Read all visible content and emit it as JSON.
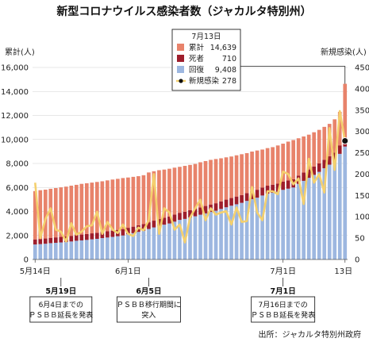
{
  "chart_data": {
    "type": "bar",
    "title": "新型コロナウイルス感染者数（ジャカルタ特別州）",
    "ylabel_left": "累計(人)",
    "ylabel_right": "新規感染(人)",
    "source": "出所：ジャカルタ特別州政府",
    "ylim_left": [
      0,
      16000
    ],
    "ylim_right": [
      0,
      450
    ],
    "yticks_left": [
      "0",
      "2,000",
      "4,000",
      "6,000",
      "8,000",
      "10,000",
      "12,000",
      "14,000",
      "16,000"
    ],
    "yticks_right": [
      "0",
      "50",
      "100",
      "150",
      "200",
      "250",
      "300",
      "350",
      "400",
      "450"
    ],
    "date_labels": [
      {
        "index": 0,
        "label": "5月14日"
      },
      {
        "index": 18,
        "label": "6月1日"
      },
      {
        "index": 48,
        "label": "7月1日"
      },
      {
        "index": 60,
        "label": "13日"
      }
    ],
    "x": [
      "5/14",
      "5/15",
      "5/16",
      "5/17",
      "5/18",
      "5/19",
      "5/20",
      "5/21",
      "5/22",
      "5/23",
      "5/24",
      "5/25",
      "5/26",
      "5/27",
      "5/28",
      "5/29",
      "5/30",
      "5/31",
      "6/1",
      "6/2",
      "6/3",
      "6/4",
      "6/5",
      "6/6",
      "6/7",
      "6/8",
      "6/9",
      "6/10",
      "6/11",
      "6/12",
      "6/13",
      "6/14",
      "6/15",
      "6/16",
      "6/17",
      "6/18",
      "6/19",
      "6/20",
      "6/21",
      "6/22",
      "6/23",
      "6/24",
      "6/25",
      "6/26",
      "6/27",
      "6/28",
      "6/29",
      "6/30",
      "7/1",
      "7/2",
      "7/3",
      "7/4",
      "7/5",
      "7/6",
      "7/7",
      "7/8",
      "7/9",
      "7/10",
      "7/11",
      "7/12",
      "7/13"
    ],
    "series": [
      {
        "name": "累計",
        "color": "#e8836b",
        "values": [
          5700,
          5773,
          5817,
          5890,
          5950,
          6010,
          6070,
          6150,
          6220,
          6301,
          6350,
          6405,
          6460,
          6515,
          6590,
          6660,
          6720,
          6785,
          6830,
          6885,
          6940,
          7020,
          7250,
          7350,
          7440,
          7490,
          7560,
          7650,
          7720,
          7800,
          7880,
          7960,
          8100,
          8200,
          8300,
          8370,
          8430,
          8510,
          8580,
          8680,
          8770,
          8860,
          8990,
          9080,
          9160,
          9280,
          9360,
          9500,
          9650,
          9820,
          9950,
          10100,
          10250,
          10400,
          10600,
          10800,
          11050,
          11300,
          11680,
          12300,
          14639
        ]
      },
      {
        "name": "死者",
        "color": "#9e1e2c",
        "values": [
          422,
          430,
          438,
          446,
          452,
          460,
          466,
          472,
          480,
          486,
          492,
          498,
          504,
          510,
          516,
          522,
          528,
          532,
          538,
          544,
          548,
          554,
          560,
          566,
          570,
          576,
          580,
          584,
          590,
          594,
          600,
          606,
          612,
          618,
          622,
          626,
          632,
          636,
          640,
          644,
          648,
          652,
          656,
          660,
          664,
          668,
          672,
          676,
          680,
          684,
          688,
          692,
          696,
          698,
          700,
          702,
          704,
          706,
          708,
          709,
          710
        ]
      },
      {
        "name": "回復",
        "color": "#9db7e0",
        "values": [
          1250,
          1280,
          1310,
          1360,
          1390,
          1420,
          1460,
          1500,
          1560,
          1590,
          1630,
          1680,
          1720,
          1780,
          1830,
          1880,
          1940,
          2000,
          2100,
          2190,
          2300,
          2390,
          2540,
          2670,
          2800,
          2900,
          3000,
          3150,
          3300,
          3380,
          3500,
          3600,
          3730,
          3840,
          3960,
          4060,
          4210,
          4350,
          4480,
          4600,
          4720,
          4880,
          5030,
          5150,
          5330,
          5480,
          5560,
          5640,
          5800,
          5900,
          6000,
          6300,
          6550,
          6800,
          7050,
          7300,
          7600,
          7900,
          8200,
          8800,
          9408
        ]
      },
      {
        "name": "新規感染",
        "color": "#f4d06e",
        "values": [
          180,
          50,
          95,
          120,
          70,
          65,
          42,
          85,
          58,
          65,
          78,
          80,
          112,
          60,
          88,
          70,
          62,
          82,
          60,
          55,
          75,
          68,
          92,
          200,
          60,
          120,
          110,
          70,
          82,
          40,
          98,
          120,
          140,
          92,
          120,
          105,
          110,
          113,
          82,
          122,
          88,
          90,
          170,
          110,
          92,
          160,
          160,
          153,
          206,
          200,
          176,
          190,
          130,
          236,
          180,
          200,
          157,
          308,
          210,
          348,
          278
        ]
      }
    ],
    "highlight": {
      "label": "7月13日",
      "index": 60,
      "rows": [
        {
          "name": "累計",
          "value": "14,639"
        },
        {
          "name": "死者",
          "value": "710"
        },
        {
          "name": "回復",
          "value": "9,408"
        },
        {
          "name": "新規感染",
          "value": "278"
        }
      ]
    },
    "annotations": [
      {
        "index": 5,
        "date": "5月19日",
        "lines": [
          "6月4日までの",
          "ＰＳＢＢ延長を発表"
        ]
      },
      {
        "index": 22,
        "date": "6月5日",
        "lines": [
          "ＰＳＢＢ移行期間に",
          "突入"
        ]
      },
      {
        "index": 48,
        "date": "7月1日",
        "lines": [
          "7月16日までの",
          "ＰＳＢＢ延長を発表"
        ]
      }
    ]
  }
}
